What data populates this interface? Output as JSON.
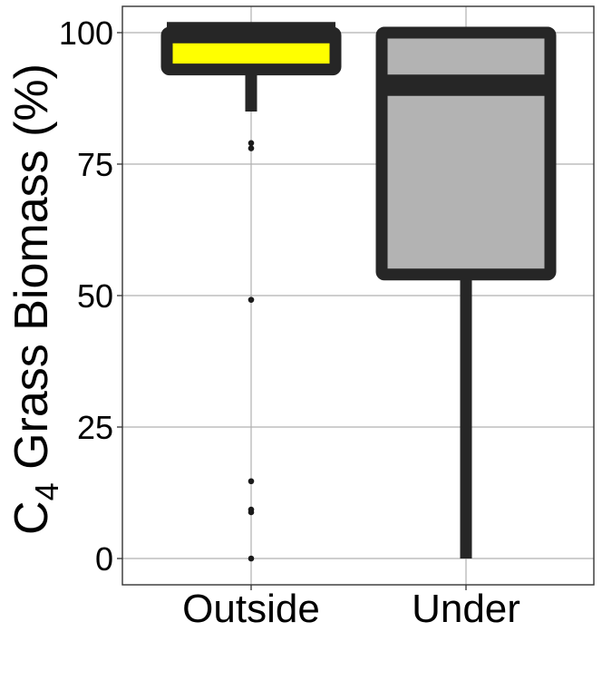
{
  "chart_data": {
    "type": "boxplot",
    "title": "",
    "xlabel": "",
    "ylabel": {
      "prefix": "C",
      "subscript": "4",
      "rest": " Grass Biomass (%)"
    },
    "ylim": [
      -5,
      105
    ],
    "yticks": [
      0,
      25,
      50,
      75,
      100
    ],
    "ytick_labels": [
      "0",
      "25",
      "50",
      "75",
      "100"
    ],
    "grid": true,
    "legend": "none",
    "categories": [
      "Outside",
      "Under"
    ],
    "boxes": [
      {
        "category": "Outside",
        "fill": "#ffff00",
        "whisker_low": 85,
        "q1": 93,
        "median": 100,
        "q3": 100,
        "whisker_high": 101.5,
        "outliers": [
          79,
          78,
          49.2,
          14.7,
          9.3,
          8.8,
          0
        ]
      },
      {
        "category": "Under",
        "fill": "#b3b3b3",
        "whisker_low": 0,
        "q1": 54,
        "median": 90,
        "q3": 100,
        "whisker_high": 100,
        "outliers": []
      }
    ],
    "colors": {
      "outline": "#262626",
      "grid": "#b0b0b0",
      "panel_border": "#333333",
      "outlier": "#1a1a1a"
    }
  }
}
